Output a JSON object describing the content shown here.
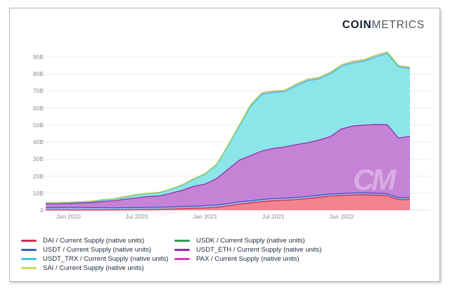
{
  "brand": {
    "bold": "COIN",
    "light": "METRICS"
  },
  "watermark": "CM",
  "chart_data": {
    "type": "area",
    "stacked": true,
    "title": "",
    "xlabel": "",
    "ylabel": "",
    "unit": "billions of native units",
    "ylim": [
      0,
      90
    ],
    "grid": "horizontal",
    "legend_position": "bottom",
    "months": [
      "2019-11",
      "2019-12",
      "2020-01",
      "2020-02",
      "2020-03",
      "2020-04",
      "2020-05",
      "2020-06",
      "2020-07",
      "2020-08",
      "2020-09",
      "2020-10",
      "2020-11",
      "2020-12",
      "2021-01",
      "2021-02",
      "2021-03",
      "2021-04",
      "2021-05",
      "2021-06",
      "2021-07",
      "2021-08",
      "2021-09",
      "2021-10",
      "2021-11",
      "2021-12",
      "2022-01",
      "2022-02",
      "2022-03",
      "2022-04",
      "2022-05",
      "2022-06",
      "2022-07"
    ],
    "x_ticks": [
      {
        "index": 2,
        "label": "Jan 2020"
      },
      {
        "index": 8,
        "label": "Jul 2020"
      },
      {
        "index": 14,
        "label": "Jan 2021"
      },
      {
        "index": 20,
        "label": "Jul 2021"
      },
      {
        "index": 26,
        "label": "Jan 2022"
      }
    ],
    "y_ticks": [
      {
        "value": 0,
        "label": "0"
      },
      {
        "value": 10,
        "label": "10B"
      },
      {
        "value": 20,
        "label": "20B"
      },
      {
        "value": 30,
        "label": "30B"
      },
      {
        "value": 40,
        "label": "40B"
      },
      {
        "value": 50,
        "label": "50B"
      },
      {
        "value": 60,
        "label": "60B"
      },
      {
        "value": 70,
        "label": "70B"
      },
      {
        "value": 80,
        "label": "80B"
      },
      {
        "value": 90,
        "label": "90B"
      }
    ],
    "stack_order": [
      "DAI",
      "USDT",
      "USDT_ETH",
      "USDT_TRX",
      "PAX",
      "USDK",
      "SAI"
    ],
    "legend_columns": [
      [
        0,
        1,
        2,
        3
      ],
      [
        4,
        5,
        6
      ]
    ],
    "series": [
      {
        "name": "DAI",
        "legend_label": "DAI / Current Supply (native units)",
        "line_color": "#d0304e",
        "fill_color": "#f28490",
        "values": [
          0.05,
          0.05,
          0.1,
          0.1,
          0.1,
          0.1,
          0.12,
          0.15,
          0.2,
          0.35,
          0.45,
          0.6,
          0.9,
          1.1,
          1.3,
          1.6,
          2.5,
          3.5,
          4.2,
          5.0,
          5.5,
          5.8,
          6.2,
          6.8,
          7.5,
          8.2,
          8.6,
          8.9,
          9.0,
          8.8,
          8.5,
          6.2,
          6.3
        ]
      },
      {
        "name": "USDT",
        "legend_label": "USDT / Current Supply (native units)",
        "line_color": "#3a5cc5",
        "fill_color": "#a9b2e5",
        "values": [
          1.4,
          1.4,
          1.5,
          1.5,
          1.4,
          1.4,
          1.3,
          1.3,
          1.3,
          1.3,
          1.3,
          1.3,
          1.3,
          1.3,
          1.4,
          1.4,
          1.4,
          1.4,
          1.3,
          1.3,
          1.3,
          1.3,
          1.3,
          1.3,
          1.3,
          1.2,
          1.2,
          1.2,
          1.2,
          1.2,
          1.1,
          1.1,
          1.1
        ]
      },
      {
        "name": "USDT_TRX",
        "legend_label": "USDT_TRX / Current Supply (native units)",
        "line_color": "#3ec6d9",
        "fill_color": "#8ce6e9",
        "values": [
          0.5,
          0.5,
          0.55,
          0.55,
          0.65,
          0.8,
          1.0,
          1.25,
          1.7,
          1.65,
          1.85,
          2.3,
          2.95,
          4.15,
          5.85,
          8.0,
          13.45,
          19.85,
          28.95,
          33.25,
          32.75,
          32.45,
          34.5,
          36.4,
          35.9,
          36.8,
          36.7,
          37.1,
          37.5,
          39.7,
          41.8,
          41.75,
          39.65
        ]
      },
      {
        "name": "SAI",
        "legend_label": "SAI / Current Supply (native units)",
        "line_color": "#c5e05a",
        "fill_color": "#e4f0a8",
        "values": [
          0.04,
          0.03,
          0.03,
          0.03,
          0.03,
          0.03,
          0.03,
          0.02,
          0.02,
          0.02,
          0.02,
          0.02,
          0.02,
          0.02,
          0.02,
          0.02,
          0.02,
          0.02,
          0.02,
          0.02,
          0.02,
          0.02,
          0.02,
          0.02,
          0.02,
          0.02,
          0.02,
          0.02,
          0.02,
          0.02,
          0.02,
          0.02,
          0.02
        ]
      },
      {
        "name": "USDK",
        "legend_label": "USDK / Current Supply (native units)",
        "line_color": "#2f9e53",
        "fill_color": "#9ed4ae",
        "values": [
          0.03,
          0.03,
          0.03,
          0.03,
          0.03,
          0.03,
          0.03,
          0.03,
          0.03,
          0.03,
          0.03,
          0.03,
          0.03,
          0.03,
          0.03,
          0.03,
          0.03,
          0.03,
          0.03,
          0.03,
          0.03,
          0.03,
          0.03,
          0.03,
          0.03,
          0.03,
          0.03,
          0.03,
          0.03,
          0.03,
          0.03,
          0.03,
          0.03
        ]
      },
      {
        "name": "USDT_ETH",
        "legend_label": "USDT_ETH / Current Supply (native units)",
        "line_color": "#8f2fa8",
        "fill_color": "#c683d6",
        "values": [
          2.3,
          2.3,
          2.3,
          2.6,
          2.9,
          3.6,
          4.1,
          5.0,
          5.7,
          6.4,
          6.6,
          8.0,
          9.5,
          11.6,
          12.6,
          15.5,
          20.0,
          24.4,
          26.5,
          28.5,
          29.5,
          30.0,
          31.0,
          31.5,
          32.3,
          33.8,
          38.0,
          39.3,
          39.8,
          40.3,
          40.6,
          35.0,
          36.0
        ]
      },
      {
        "name": "PAX",
        "legend_label": "PAX / Current Supply (native units)",
        "line_color": "#d838cc",
        "fill_color": "#eda6e8",
        "values": [
          0.2,
          0.2,
          0.2,
          0.2,
          0.2,
          0.25,
          0.25,
          0.25,
          0.25,
          0.25,
          0.25,
          0.25,
          0.3,
          0.3,
          0.3,
          0.4,
          0.6,
          0.8,
          1.0,
          0.9,
          0.9,
          0.9,
          0.95,
          0.95,
          0.95,
          0.95,
          0.95,
          0.95,
          0.95,
          0.95,
          0.95,
          0.9,
          0.9
        ]
      }
    ]
  }
}
